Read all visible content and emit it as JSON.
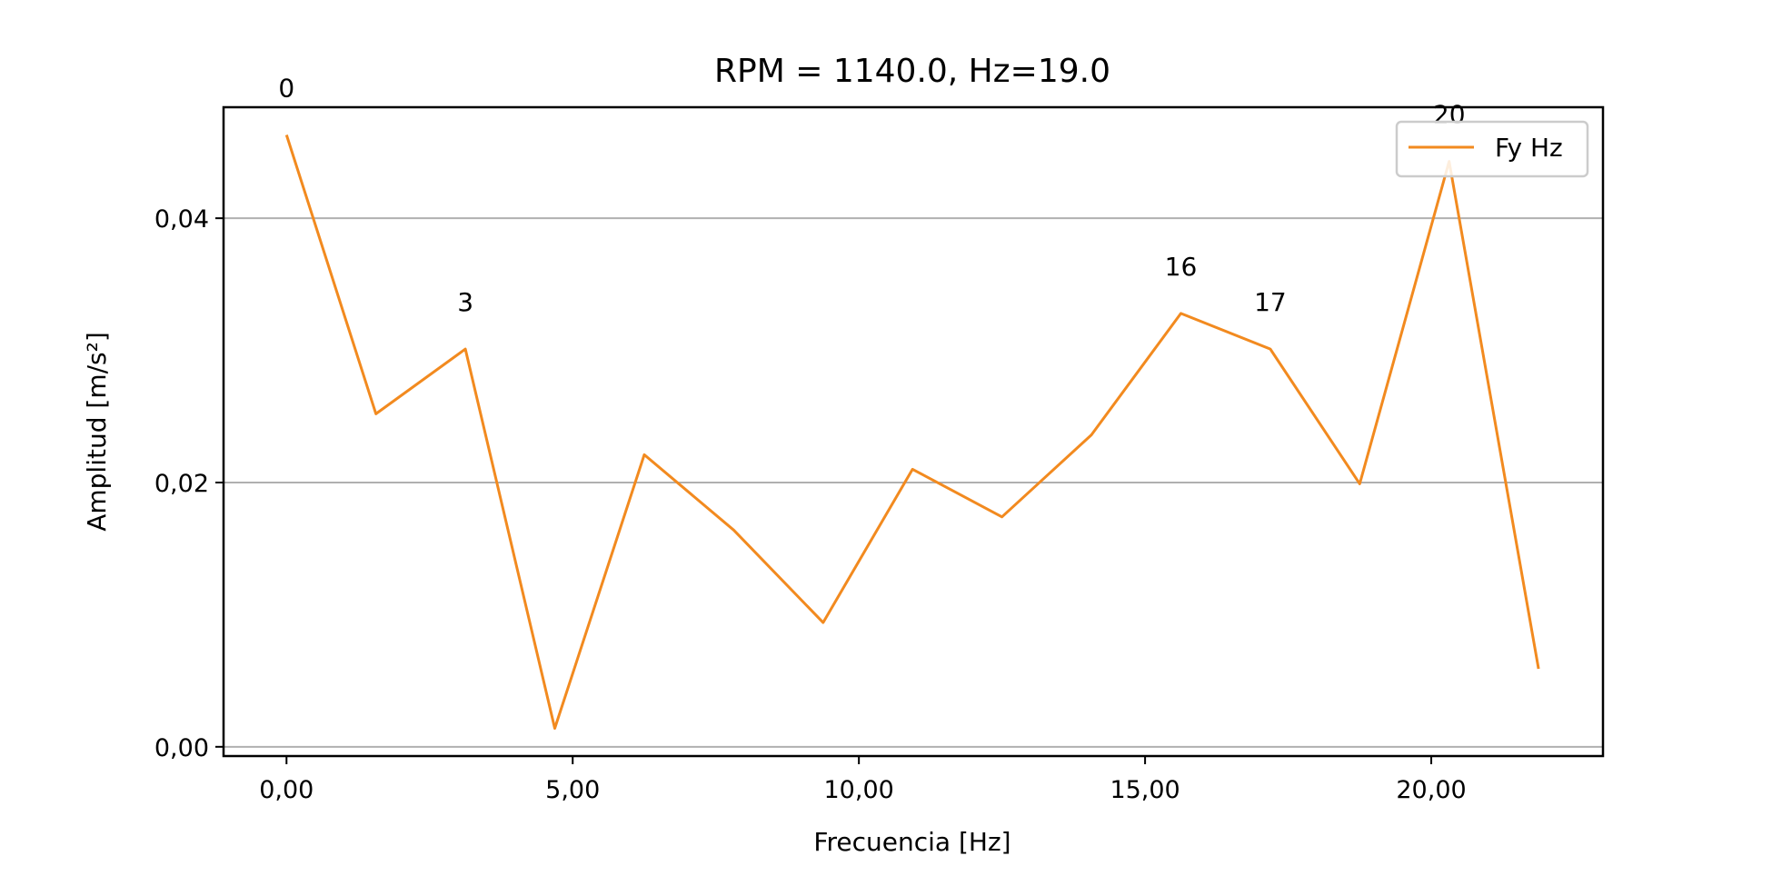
{
  "chart_data": {
    "type": "line",
    "title": "RPM = 1140.0, Hz=19.0",
    "xlabel": "Frecuencia [Hz]",
    "ylabel": "Amplitud [m/s²]",
    "xlim": [
      -1.1,
      23.0
    ],
    "ylim": [
      -0.0007,
      0.0484
    ],
    "xticks": [
      0,
      5,
      10,
      15,
      20
    ],
    "xtick_labels": [
      "0,00",
      "5,00",
      "10,00",
      "15,00",
      "20,00"
    ],
    "yticks": [
      0,
      0.02,
      0.04
    ],
    "ytick_labels": [
      "0,00",
      "0,02",
      "0,04"
    ],
    "grid": "horizontal",
    "legend": "upper right",
    "series": [
      {
        "name": "Fy Hz",
        "color": "#f28a1f",
        "x": [
          0.0,
          1.5625,
          3.125,
          4.6875,
          6.25,
          7.8125,
          9.375,
          10.9375,
          12.5,
          14.0625,
          15.625,
          17.1875,
          18.75,
          20.3125,
          21.875
        ],
        "y": [
          0.0463,
          0.0252,
          0.0301,
          0.0014,
          0.0221,
          0.0164,
          0.0094,
          0.021,
          0.0174,
          0.0236,
          0.0328,
          0.0301,
          0.0199,
          0.0443,
          0.0059
        ]
      }
    ],
    "annotations": [
      {
        "text": "0",
        "index": 0
      },
      {
        "text": "3",
        "index": 2
      },
      {
        "text": "16",
        "index": 10
      },
      {
        "text": "17",
        "index": 11
      },
      {
        "text": "20",
        "index": 13
      }
    ]
  }
}
